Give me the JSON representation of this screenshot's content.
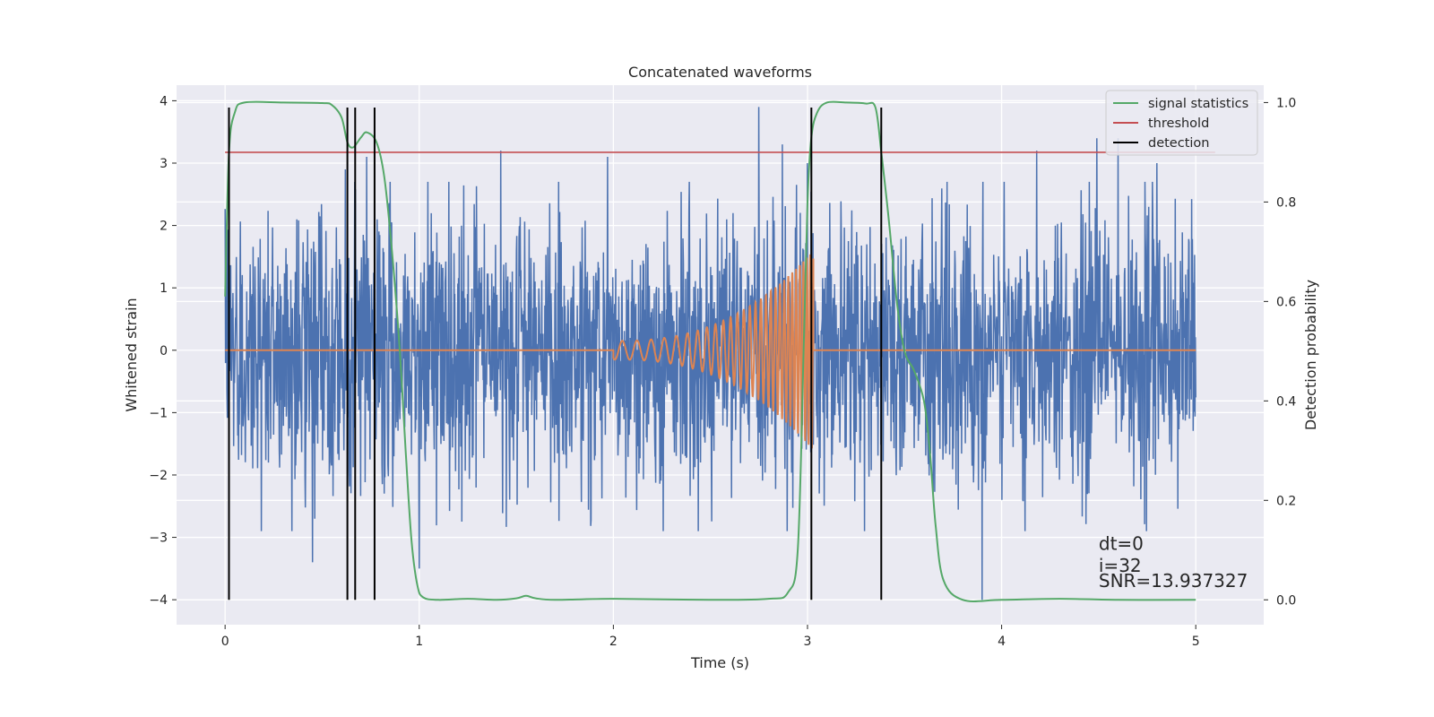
{
  "chart_data": {
    "type": "line",
    "title": "Concatenated waveforms",
    "xlabel": "Time (s)",
    "ylabel": "Whitened strain",
    "ylabel_right": "Detection probability",
    "xlim": [
      -0.25,
      5.35
    ],
    "ylim": [
      -4.4,
      4.25
    ],
    "ylim_right": [
      -0.05,
      1.035
    ],
    "xticks": [
      0,
      1,
      2,
      3,
      4,
      5
    ],
    "yticks": [
      -4,
      -3,
      -2,
      -1,
      0,
      1,
      2,
      3,
      4
    ],
    "yticks_right": [
      0.0,
      0.2,
      0.4,
      0.6,
      0.8,
      1.0
    ],
    "grid": true,
    "legend_position": "top-right",
    "legend": [
      {
        "label": "signal statistics",
        "color": "#55a868"
      },
      {
        "label": "threshold",
        "color": "#c44e52"
      },
      {
        "label": "detection",
        "color": "#000000"
      }
    ],
    "colors": {
      "strain": "#4c72b0",
      "template": "#dd8452",
      "signal_statistics": "#55a868",
      "threshold": "#c44e52",
      "detection": "#000000",
      "plot_background": "#eaeaf2",
      "grid": "#ffffff"
    },
    "series": [
      {
        "role": "strain",
        "description_axis": "left",
        "x_range": [
          0,
          5
        ],
        "noise_amplitude_typical": 1.3,
        "notable_peaks": [
          [
            0.02,
            2.4
          ],
          [
            0.45,
            -3.4
          ],
          [
            0.62,
            2.9
          ],
          [
            0.73,
            3.1
          ],
          [
            1.0,
            -3.5
          ],
          [
            1.42,
            3.2
          ],
          [
            1.97,
            3.1
          ],
          [
            2.75,
            3.9
          ],
          [
            2.87,
            3.3
          ],
          [
            3.0,
            3.0
          ],
          [
            3.9,
            -4.0
          ],
          [
            4.18,
            3.2
          ],
          [
            4.49,
            3.4
          ],
          [
            4.6,
            3.4
          ],
          [
            4.8,
            3.0
          ]
        ]
      },
      {
        "role": "template",
        "description_axis": "left",
        "flat_range": [
          0,
          5
        ],
        "chirp_range": [
          2.0,
          3.03
        ],
        "chirp_start_amplitude": 0.15,
        "chirp_end_amplitude": 1.6,
        "chirp_start_frequency": 13,
        "chirp_end_frequency": 60
      },
      {
        "role": "signal_statistics",
        "name": "signal statistics",
        "description_axis": "right",
        "x": [
          0,
          0.02,
          0.05,
          0.1,
          0.3,
          0.5,
          0.55,
          0.6,
          0.63,
          0.66,
          0.7,
          0.73,
          0.78,
          0.82,
          0.86,
          0.9,
          0.93,
          0.96,
          0.99,
          1.02,
          1.1,
          1.25,
          1.4,
          1.5,
          1.55,
          1.6,
          1.7,
          2.0,
          2.5,
          2.8,
          2.9,
          2.95,
          2.98,
          3.0,
          3.02,
          3.05,
          3.1,
          3.2,
          3.3,
          3.35,
          3.38,
          3.42,
          3.46,
          3.5,
          3.55,
          3.6,
          3.63,
          3.66,
          3.7,
          3.8,
          4.0,
          4.3,
          4.6,
          5.0
        ],
        "values": [
          0.61,
          0.9,
          0.98,
          1.0,
          1.0,
          0.999,
          0.995,
          0.97,
          0.92,
          0.91,
          0.93,
          0.94,
          0.92,
          0.85,
          0.7,
          0.5,
          0.3,
          0.12,
          0.03,
          0.005,
          0.0,
          0.002,
          0.0,
          0.003,
          0.008,
          0.003,
          0.0,
          0.002,
          0.0,
          0.002,
          0.015,
          0.1,
          0.5,
          0.8,
          0.93,
          0.98,
          1.0,
          1.0,
          0.998,
          0.99,
          0.9,
          0.76,
          0.6,
          0.5,
          0.46,
          0.4,
          0.3,
          0.15,
          0.04,
          0.0,
          0.0,
          0.002,
          0.0,
          0.0
        ]
      },
      {
        "role": "threshold",
        "name": "threshold",
        "description_axis": "right",
        "x": [
          0,
          5.1
        ],
        "values": [
          0.9,
          0.9
        ]
      }
    ],
    "detections": [
      0.02,
      0.63,
      0.67,
      0.77,
      3.02,
      3.38
    ],
    "detection_line_ylim_right": [
      0.0,
      0.99
    ],
    "annotations": [
      {
        "text": "dt=0",
        "x": 4.5,
        "y": -3.2
      },
      {
        "text": "i=32",
        "x": 4.5,
        "y": -3.55
      },
      {
        "text": "SNR=13.937327",
        "x": 4.5,
        "y": -3.8
      }
    ]
  }
}
